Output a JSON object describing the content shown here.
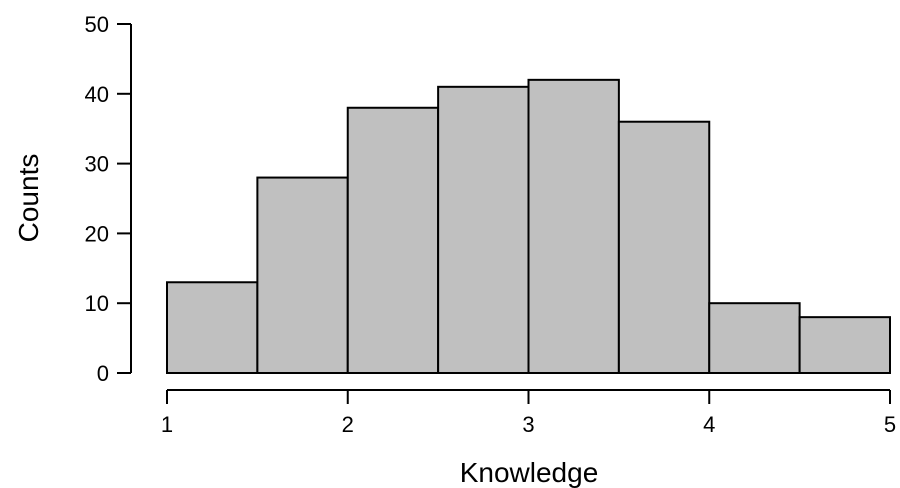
{
  "chart_data": {
    "type": "bar",
    "title": "",
    "xlabel": "Knowledge",
    "ylabel": "Counts",
    "bins": [
      {
        "from": 1.0,
        "to": 1.5,
        "count": 13
      },
      {
        "from": 1.5,
        "to": 2.0,
        "count": 28
      },
      {
        "from": 2.0,
        "to": 2.5,
        "count": 38
      },
      {
        "from": 2.5,
        "to": 3.0,
        "count": 41
      },
      {
        "from": 3.0,
        "to": 3.5,
        "count": 42
      },
      {
        "from": 3.5,
        "to": 4.0,
        "count": 36
      },
      {
        "from": 4.0,
        "to": 4.5,
        "count": 10
      },
      {
        "from": 4.5,
        "to": 5.0,
        "count": 8
      }
    ],
    "xlim": [
      1,
      5
    ],
    "ylim": [
      0,
      50
    ],
    "x_ticks": [
      "1",
      "2",
      "3",
      "4",
      "5"
    ],
    "y_ticks": [
      "0",
      "10",
      "20",
      "30",
      "40",
      "50"
    ],
    "grid": false,
    "bar_color": "#c0c0c0",
    "edge_color": "#000000"
  }
}
